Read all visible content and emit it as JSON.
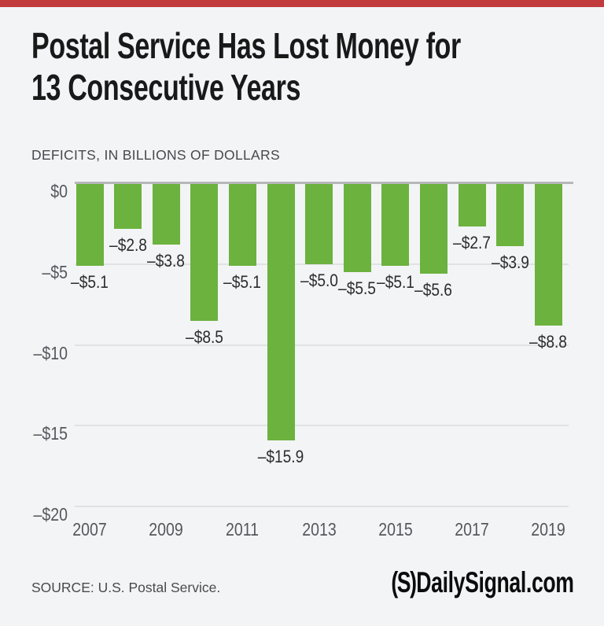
{
  "accent_color": "#c23b3d",
  "header": {
    "title_line1": "Postal Service Has Lost Money for",
    "title_line2": "13 Consecutive Years",
    "subtitle": "DEFICITS, IN BILLIONS OF DOLLARS"
  },
  "chart_data": {
    "type": "bar",
    "title": "Postal Service Has Lost Money for 13 Consecutive Years",
    "subtitle": "DEFICITS, IN BILLIONS OF DOLLARS",
    "categories": [
      "2007",
      "2008",
      "2009",
      "2010",
      "2011",
      "2012",
      "2013",
      "2014",
      "2015",
      "2016",
      "2017",
      "2018",
      "2019"
    ],
    "values": [
      -5.1,
      -2.8,
      -3.8,
      -8.5,
      -5.1,
      -15.9,
      -5.0,
      -5.5,
      -5.1,
      -5.6,
      -2.7,
      -3.9,
      -8.8
    ],
    "bar_labels": [
      "–$5.1",
      "–$2.8",
      "–$3.8",
      "–$8.5",
      "–$5.1",
      "–$15.9",
      "–$5.0",
      "–$5.5",
      "–$5.1",
      "–$5.6",
      "–$2.7",
      "–$3.9",
      "–$8.8"
    ],
    "x_tick_labels": [
      "2007",
      "2009",
      "2011",
      "2013",
      "2015",
      "2017",
      "2019"
    ],
    "y_ticks": [
      {
        "value": 0,
        "label": "$0"
      },
      {
        "value": -5,
        "label": "–$5"
      },
      {
        "value": -10,
        "label": "–$10"
      },
      {
        "value": -15,
        "label": "–$15"
      },
      {
        "value": -20,
        "label": "–$20"
      }
    ],
    "ylim": [
      -20,
      0
    ],
    "grid": true,
    "legend": "none",
    "bar_color": "#6cb23e",
    "xlabel": "",
    "ylabel": ""
  },
  "footer": {
    "source": "SOURCE: U.S. Postal Service.",
    "logo_mark": "(S)",
    "logo_text": "DailySignal.com"
  }
}
